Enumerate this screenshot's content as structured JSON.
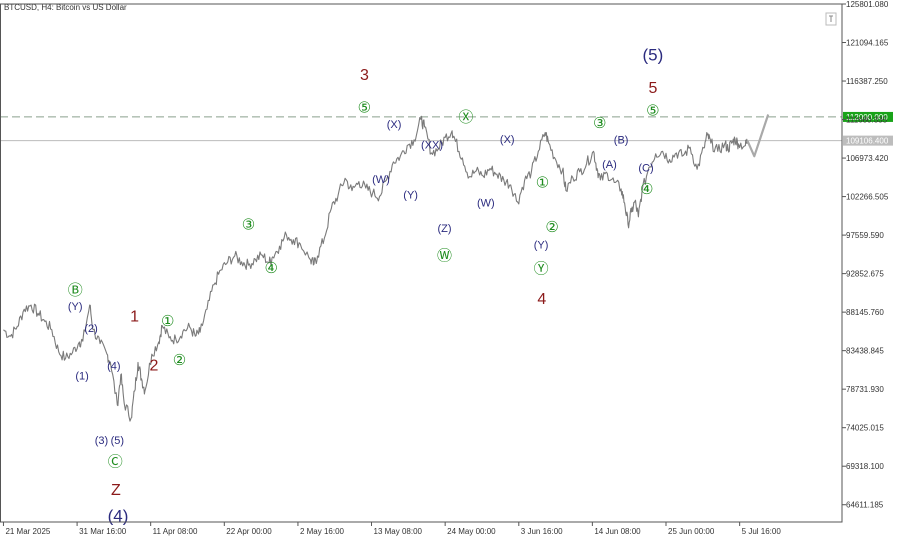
{
  "chart_data": {
    "type": "line",
    "title": "BTCUSD, H4:  Bitcoin vs US Dollar",
    "symbol": "BTCUSD",
    "timeframe": "H4",
    "instrument_name": "Bitcoin vs US Dollar",
    "ylim": [
      62500,
      125801.08
    ],
    "y_ticks": [
      "125801.080",
      "121094.165",
      "116387.250",
      "111680.335",
      "106973.420",
      "102266.505",
      "97559.590",
      "92852.675",
      "88145.760",
      "83438.845",
      "78731.930",
      "74025.015",
      "69318.100",
      "64611.185"
    ],
    "x_ticks": [
      {
        "label": "21 Mar 2025",
        "t": 0.0
      },
      {
        "label": "31 Mar 16:00",
        "t": 10.67
      },
      {
        "label": "11 Apr 08:00",
        "t": 21.33
      },
      {
        "label": "22 Apr 00:00",
        "t": 32.0
      },
      {
        "label": "2 May 16:00",
        "t": 42.67
      },
      {
        "label": "13 May 08:00",
        "t": 53.33
      },
      {
        "label": "24 May 00:00",
        "t": 64.0
      },
      {
        "label": "3 Jun 16:00",
        "t": 74.67
      },
      {
        "label": "14 Jun 08:00",
        "t": 85.33
      },
      {
        "label": "25 Jun 00:00",
        "t": 96.0
      },
      {
        "label": "5 Jul 16:00",
        "t": 106.67
      }
    ],
    "x_range": [
      -0.5,
      121.5
    ],
    "horizontal_lines": [
      {
        "value": 112000,
        "label": "112000.000",
        "style": "dashed",
        "color": "#8aa08e",
        "tag_color": "#19a319"
      },
      {
        "value": 109106.4,
        "label": "109106.400",
        "style": "solid",
        "color": "#bbbbbb",
        "tag_color": "#bdbdbd"
      }
    ],
    "price_series": [
      {
        "t": 0.0,
        "v": 86000
      },
      {
        "t": 1.0,
        "v": 85200
      },
      {
        "t": 2.0,
        "v": 86400
      },
      {
        "t": 3.0,
        "v": 88500
      },
      {
        "t": 4.0,
        "v": 89000
      },
      {
        "t": 5.0,
        "v": 88000
      },
      {
        "t": 6.0,
        "v": 87000
      },
      {
        "t": 7.0,
        "v": 86000
      },
      {
        "t": 8.0,
        "v": 83300
      },
      {
        "t": 9.0,
        "v": 82500
      },
      {
        "t": 10.0,
        "v": 83200
      },
      {
        "t": 11.0,
        "v": 84500
      },
      {
        "t": 11.5,
        "v": 84600
      },
      {
        "t": 12.5,
        "v": 89000
      },
      {
        "t": 13.0,
        "v": 86000
      },
      {
        "t": 14.0,
        "v": 84300
      },
      {
        "t": 15.0,
        "v": 83000
      },
      {
        "t": 15.5,
        "v": 82000
      },
      {
        "t": 16.5,
        "v": 76800
      },
      {
        "t": 17.0,
        "v": 80500
      },
      {
        "t": 17.5,
        "v": 77000
      },
      {
        "t": 18.5,
        "v": 75200
      },
      {
        "t": 19.0,
        "v": 78500
      },
      {
        "t": 19.5,
        "v": 82000
      },
      {
        "t": 20.0,
        "v": 80000
      },
      {
        "t": 20.5,
        "v": 78500
      },
      {
        "t": 21.5,
        "v": 83000
      },
      {
        "t": 22.5,
        "v": 84500
      },
      {
        "t": 23.0,
        "v": 86500
      },
      {
        "t": 24.0,
        "v": 85000
      },
      {
        "t": 25.0,
        "v": 84800
      },
      {
        "t": 26.0,
        "v": 85800
      },
      {
        "t": 27.0,
        "v": 86300
      },
      {
        "t": 27.8,
        "v": 85200
      },
      {
        "t": 28.5,
        "v": 85700
      },
      {
        "t": 29.5,
        "v": 88500
      },
      {
        "t": 30.5,
        "v": 91500
      },
      {
        "t": 31.5,
        "v": 93300
      },
      {
        "t": 32.5,
        "v": 94300
      },
      {
        "t": 33.5,
        "v": 95000
      },
      {
        "t": 34.5,
        "v": 94300
      },
      {
        "t": 35.5,
        "v": 93900
      },
      {
        "t": 36.5,
        "v": 94600
      },
      {
        "t": 37.5,
        "v": 95100
      },
      {
        "t": 38.5,
        "v": 94200
      },
      {
        "t": 39.0,
        "v": 94900
      },
      {
        "t": 40.0,
        "v": 96200
      },
      {
        "t": 41.0,
        "v": 97600
      },
      {
        "t": 42.0,
        "v": 97000
      },
      {
        "t": 43.0,
        "v": 96500
      },
      {
        "t": 44.5,
        "v": 94500
      },
      {
        "t": 45.0,
        "v": 94000
      },
      {
        "t": 45.5,
        "v": 95000
      },
      {
        "t": 46.5,
        "v": 97200
      },
      {
        "t": 47.5,
        "v": 100800
      },
      {
        "t": 48.5,
        "v": 102500
      },
      {
        "t": 49.5,
        "v": 104500
      },
      {
        "t": 50.5,
        "v": 103000
      },
      {
        "t": 51.5,
        "v": 104100
      },
      {
        "t": 52.5,
        "v": 103300
      },
      {
        "t": 53.5,
        "v": 102700
      },
      {
        "t": 54.5,
        "v": 102300
      },
      {
        "t": 55.5,
        "v": 104300
      },
      {
        "t": 56.5,
        "v": 106500
      },
      {
        "t": 57.5,
        "v": 107200
      },
      {
        "t": 58.5,
        "v": 108500
      },
      {
        "t": 59.5,
        "v": 109200
      },
      {
        "t": 60.5,
        "v": 111700
      },
      {
        "t": 61.0,
        "v": 110800
      },
      {
        "t": 62.0,
        "v": 107600
      },
      {
        "t": 63.0,
        "v": 108100
      },
      {
        "t": 64.0,
        "v": 109500
      },
      {
        "t": 65.0,
        "v": 110300
      },
      {
        "t": 65.5,
        "v": 109000
      },
      {
        "t": 66.5,
        "v": 107000
      },
      {
        "t": 67.5,
        "v": 104700
      },
      {
        "t": 68.5,
        "v": 105400
      },
      {
        "t": 69.5,
        "v": 104800
      },
      {
        "t": 70.5,
        "v": 105700
      },
      {
        "t": 71.5,
        "v": 105000
      },
      {
        "t": 72.5,
        "v": 104300
      },
      {
        "t": 73.5,
        "v": 103700
      },
      {
        "t": 74.5,
        "v": 101600
      },
      {
        "t": 75.5,
        "v": 104200
      },
      {
        "t": 76.5,
        "v": 105300
      },
      {
        "t": 77.5,
        "v": 107800
      },
      {
        "t": 78.5,
        "v": 110100
      },
      {
        "t": 79.0,
        "v": 108800
      },
      {
        "t": 80.0,
        "v": 106800
      },
      {
        "t": 81.0,
        "v": 105500
      },
      {
        "t": 81.5,
        "v": 103000
      },
      {
        "t": 82.5,
        "v": 104600
      },
      {
        "t": 83.5,
        "v": 105300
      },
      {
        "t": 84.5,
        "v": 106300
      },
      {
        "t": 85.5,
        "v": 107800
      },
      {
        "t": 86.0,
        "v": 105700
      },
      {
        "t": 86.5,
        "v": 104300
      },
      {
        "t": 87.5,
        "v": 105100
      },
      {
        "t": 88.5,
        "v": 104000
      },
      {
        "t": 89.5,
        "v": 103200
      },
      {
        "t": 90.0,
        "v": 101500
      },
      {
        "t": 90.5,
        "v": 98900
      },
      {
        "t": 91.0,
        "v": 100400
      },
      {
        "t": 91.5,
        "v": 101700
      },
      {
        "t": 92.0,
        "v": 99800
      },
      {
        "t": 92.5,
        "v": 102800
      },
      {
        "t": 93.5,
        "v": 105800
      },
      {
        "t": 94.5,
        "v": 107500
      },
      {
        "t": 95.5,
        "v": 107800
      },
      {
        "t": 96.5,
        "v": 106800
      },
      {
        "t": 97.5,
        "v": 107600
      },
      {
        "t": 98.5,
        "v": 107300
      },
      {
        "t": 99.5,
        "v": 108300
      },
      {
        "t": 100.5,
        "v": 105600
      },
      {
        "t": 101.5,
        "v": 108200
      },
      {
        "t": 102.0,
        "v": 109800
      },
      {
        "t": 102.5,
        "v": 108800
      },
      {
        "t": 103.5,
        "v": 107800
      },
      {
        "t": 104.5,
        "v": 108700
      },
      {
        "t": 105.0,
        "v": 108100
      },
      {
        "t": 105.5,
        "v": 108800
      },
      {
        "t": 106.0,
        "v": 109300
      },
      {
        "t": 106.5,
        "v": 108700
      },
      {
        "t": 107.5,
        "v": 108500
      },
      {
        "t": 107.8,
        "v": 109100
      }
    ],
    "projection": [
      {
        "t": 107.8,
        "v": 109100
      },
      {
        "t": 108.8,
        "v": 107200
      },
      {
        "t": 110.8,
        "v": 112300
      }
    ],
    "wave_labels": [
      {
        "text": "Ⓑ",
        "t": 10.4,
        "v": 90900,
        "color": "#1e8c1e"
      },
      {
        "text": "(Y)",
        "t": 10.4,
        "v": 88900,
        "color": "#2b2b7f"
      },
      {
        "text": "(2)",
        "t": 12.7,
        "v": 86200,
        "color": "#2b2b7f"
      },
      {
        "text": "(1)",
        "t": 11.4,
        "v": 80400,
        "color": "#2b2b7f"
      },
      {
        "text": "(4)",
        "t": 16.0,
        "v": 81600,
        "color": "#2b2b7f"
      },
      {
        "text": "(3)",
        "t": 14.2,
        "v": 72500,
        "color": "#2b2b7f"
      },
      {
        "text": "(5)",
        "t": 16.5,
        "v": 72500,
        "color": "#2b2b7f"
      },
      {
        "text": "Ⓒ",
        "t": 16.2,
        "v": 69900,
        "color": "#1e8c1e"
      },
      {
        "text": "Z",
        "t": 16.3,
        "v": 66500,
        "color": "#8b1a1a"
      },
      {
        "text": "(4)",
        "t": 16.6,
        "v": 63300,
        "color": "#2b2b7f"
      },
      {
        "text": "1",
        "t": 19.0,
        "v": 87700,
        "color": "#8b1a1a"
      },
      {
        "text": "①",
        "t": 23.8,
        "v": 87100,
        "color": "#1e8c1e"
      },
      {
        "text": "2",
        "t": 21.8,
        "v": 81700,
        "color": "#8b1a1a"
      },
      {
        "text": "②",
        "t": 25.5,
        "v": 82300,
        "color": "#1e8c1e"
      },
      {
        "text": "③",
        "t": 35.5,
        "v": 98900,
        "color": "#1e8c1e"
      },
      {
        "text": "④",
        "t": 38.8,
        "v": 93600,
        "color": "#1e8c1e"
      },
      {
        "text": "3",
        "t": 52.3,
        "v": 117200,
        "color": "#8b1a1a"
      },
      {
        "text": "⑤",
        "t": 52.3,
        "v": 113200,
        "color": "#1e8c1e"
      },
      {
        "text": "(X)",
        "t": 56.6,
        "v": 111100,
        "color": "#2b2b7f"
      },
      {
        "text": "(W)",
        "t": 54.7,
        "v": 104400,
        "color": "#2b2b7f"
      },
      {
        "text": "(XX)",
        "t": 62.1,
        "v": 108600,
        "color": "#2b2b7f"
      },
      {
        "text": "(Y)",
        "t": 59.0,
        "v": 102500,
        "color": "#2b2b7f"
      },
      {
        "text": "Ⓧ",
        "t": 67.0,
        "v": 112000,
        "color": "#1e8c1e"
      },
      {
        "text": "(Z)",
        "t": 63.9,
        "v": 98400,
        "color": "#2b2b7f"
      },
      {
        "text": "Ⓦ",
        "t": 63.9,
        "v": 95100,
        "color": "#1e8c1e"
      },
      {
        "text": "(X)",
        "t": 73.0,
        "v": 109300,
        "color": "#2b2b7f"
      },
      {
        "text": "(W)",
        "t": 69.9,
        "v": 101500,
        "color": "#2b2b7f"
      },
      {
        "text": "①",
        "t": 78.1,
        "v": 104000,
        "color": "#1e8c1e"
      },
      {
        "text": "②",
        "t": 79.5,
        "v": 98600,
        "color": "#1e8c1e"
      },
      {
        "text": "(Y)",
        "t": 77.9,
        "v": 96400,
        "color": "#2b2b7f"
      },
      {
        "text": "Ⓨ",
        "t": 77.9,
        "v": 93500,
        "color": "#1e8c1e"
      },
      {
        "text": "4",
        "t": 78.0,
        "v": 89800,
        "color": "#8b1a1a"
      },
      {
        "text": "③",
        "t": 86.4,
        "v": 111300,
        "color": "#1e8c1e"
      },
      {
        "text": "(B)",
        "t": 89.5,
        "v": 109200,
        "color": "#2b2b7f"
      },
      {
        "text": "(A)",
        "t": 87.8,
        "v": 106200,
        "color": "#2b2b7f"
      },
      {
        "text": "(C)",
        "t": 93.1,
        "v": 105800,
        "color": "#2b2b7f"
      },
      {
        "text": "④",
        "t": 93.2,
        "v": 103200,
        "color": "#1e8c1e"
      },
      {
        "text": "(5)",
        "t": 94.1,
        "v": 119600,
        "color": "#2b2b7f"
      },
      {
        "text": "5",
        "t": 94.1,
        "v": 115600,
        "color": "#8b1a1a"
      },
      {
        "text": "⑤",
        "t": 94.1,
        "v": 112800,
        "color": "#1e8c1e"
      }
    ],
    "colors": {
      "price_line": "#7a7a7a",
      "projection": "#a9a9a9",
      "grid": "none",
      "axis": "#555555",
      "green": "#1e8c1e",
      "navy": "#2b2b7f",
      "maroon": "#8b1a1a"
    },
    "corner_icon": "scroll-end-icon"
  }
}
